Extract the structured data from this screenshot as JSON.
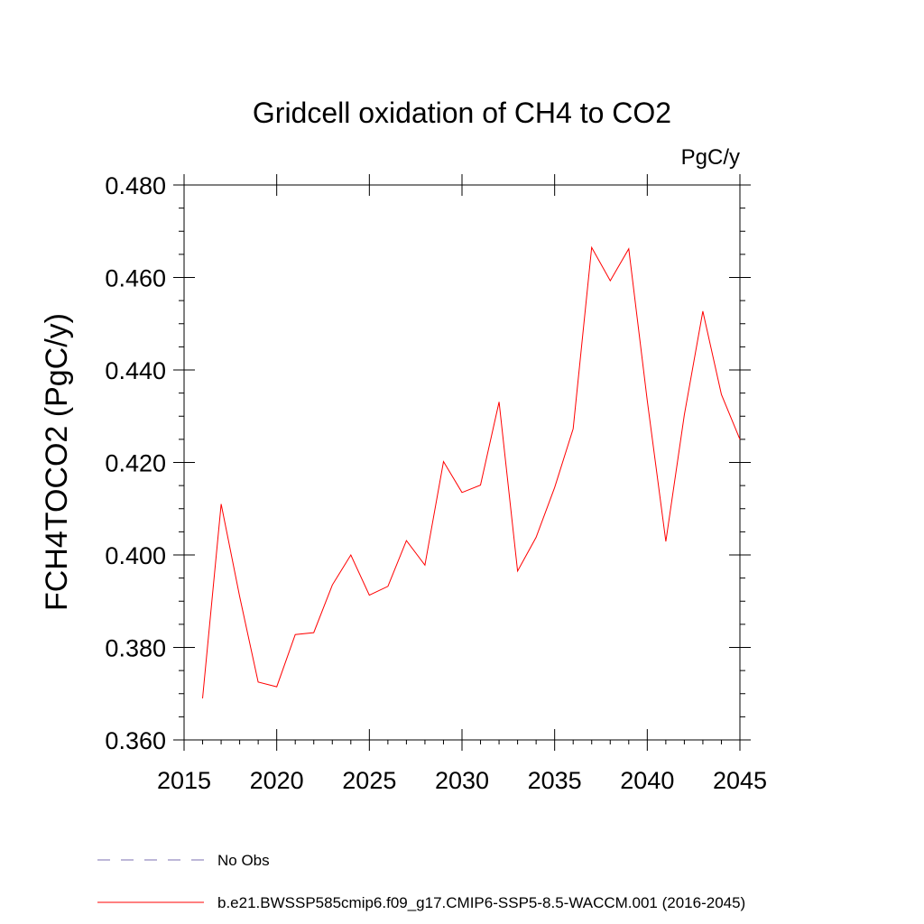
{
  "chart_data": {
    "type": "line",
    "title": "Gridcell oxidation of CH4 to CO2",
    "units_label": "PgC/y",
    "xlabel": "",
    "ylabel": "FCH4TOCO2  (PgC/y)",
    "xlim": [
      2015,
      2045
    ],
    "ylim": [
      0.36,
      0.48
    ],
    "x_ticks": [
      2015,
      2020,
      2025,
      2030,
      2035,
      2040,
      2045
    ],
    "x_tick_labels": [
      "2015",
      "2020",
      "2025",
      "2030",
      "2035",
      "2040",
      "2045"
    ],
    "y_ticks": [
      0.36,
      0.38,
      0.4,
      0.42,
      0.44,
      0.46,
      0.48
    ],
    "y_tick_labels": [
      "0.360",
      "0.380",
      "0.400",
      "0.420",
      "0.440",
      "0.460",
      "0.480"
    ],
    "grid": false,
    "series": [
      {
        "name": "b.e21.BWSSP585cmip6.f09_g17.CMIP6-SSP5-8.5-WACCM.001 (2016-2045)",
        "color": "#ff0000",
        "x": [
          2016,
          2017,
          2018,
          2019,
          2020,
          2021,
          2022,
          2023,
          2024,
          2025,
          2026,
          2027,
          2028,
          2029,
          2030,
          2031,
          2032,
          2033,
          2034,
          2035,
          2036,
          2037,
          2038,
          2039,
          2040,
          2041,
          2042,
          2043,
          2044,
          2045
        ],
        "values": [
          0.369,
          0.411,
          0.391,
          0.3725,
          0.3715,
          0.3828,
          0.3832,
          0.3935,
          0.4,
          0.3913,
          0.3932,
          0.4031,
          0.3978,
          0.4202,
          0.4135,
          0.4151,
          0.4331,
          0.3965,
          0.4038,
          0.4146,
          0.4273,
          0.4665,
          0.4593,
          0.4662,
          0.4334,
          0.4029,
          0.4303,
          0.4527,
          0.4347,
          0.425
        ]
      }
    ],
    "legend": [
      {
        "label": "No Obs",
        "color": "#7b6fb0",
        "style": "dashed"
      },
      {
        "label": "b.e21.BWSSP585cmip6.f09_g17.CMIP6-SSP5-8.5-WACCM.001 (2016-2045)",
        "color": "#ff0000",
        "style": "solid"
      }
    ],
    "legend_position": "bottom"
  }
}
